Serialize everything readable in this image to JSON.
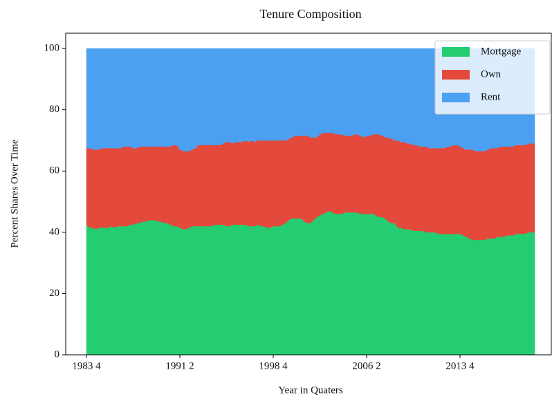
{
  "chart_data": {
    "type": "stacked-area",
    "title": "Tenure Composition",
    "xlabel": "Year in Quaters",
    "ylabel": "Percent Shares Over Time",
    "categories": [
      "1983 4",
      null,
      null,
      null,
      null,
      null,
      null,
      null,
      null,
      null,
      null,
      null,
      null,
      null,
      null,
      null,
      null,
      null,
      null,
      null,
      null,
      null,
      null,
      null,
      null,
      null,
      null,
      null,
      null,
      null,
      "1991 2",
      null,
      null,
      null,
      null,
      null,
      null,
      null,
      null,
      null,
      null,
      null,
      null,
      null,
      null,
      null,
      null,
      null,
      null,
      null,
      null,
      null,
      null,
      null,
      null,
      null,
      null,
      null,
      null,
      null,
      "1998 4",
      null,
      null,
      null,
      null,
      null,
      null,
      null,
      null,
      null,
      null,
      null,
      null,
      null,
      null,
      null,
      null,
      null,
      null,
      null,
      null,
      null,
      null,
      null,
      null,
      null,
      null,
      null,
      null,
      null,
      "2006 2",
      null,
      null,
      null,
      null,
      null,
      null,
      null,
      null,
      null,
      null,
      null,
      null,
      null,
      null,
      null,
      null,
      null,
      null,
      null,
      null,
      null,
      null,
      null,
      null,
      null,
      null,
      null,
      null,
      null,
      "2013 4",
      null,
      null,
      null,
      null,
      null,
      null,
      null,
      null,
      null,
      null,
      null,
      null,
      null,
      null,
      null,
      null,
      null,
      null,
      null,
      null,
      null,
      null,
      null,
      null
    ],
    "series": [
      {
        "name": "Mortgage",
        "color": "#25cd72",
        "values": [
          42.5,
          41.5,
          41.5,
          41,
          41.5,
          41.5,
          41.5,
          41.5,
          42,
          41.5,
          42,
          42,
          42,
          42,
          42.5,
          42.5,
          43,
          43,
          43.5,
          43.5,
          44,
          44,
          44,
          43.5,
          43.5,
          43,
          43,
          42.5,
          42,
          42,
          41.5,
          41,
          41,
          41.5,
          42,
          42,
          42,
          42,
          42,
          42,
          42,
          42.5,
          42.5,
          42.5,
          42.5,
          42,
          42,
          42.5,
          42.5,
          42.5,
          42.5,
          42.5,
          42,
          42,
          42,
          42.5,
          42,
          42,
          41.5,
          41.5,
          42,
          42,
          42,
          42.5,
          43,
          44,
          44.5,
          44.5,
          44.5,
          44.5,
          43.5,
          43,
          43,
          44,
          45,
          45.5,
          46,
          46.5,
          47,
          46.5,
          46,
          46,
          46,
          46.5,
          46.5,
          46.5,
          46.5,
          46.5,
          46,
          46,
          46,
          46,
          46,
          45.5,
          45,
          45,
          44.5,
          43.5,
          43,
          43,
          41.5,
          41.5,
          41,
          41,
          41,
          40.5,
          40.5,
          40.5,
          40.5,
          40,
          40,
          40,
          40,
          39.5,
          39.5,
          39.5,
          39.5,
          39.5,
          39.5,
          39.5,
          39.5,
          39,
          38.5,
          38,
          37.5,
          37.5,
          37.5,
          37.5,
          37.5,
          38,
          38,
          38,
          38.5,
          38.5,
          38.5,
          39,
          39,
          39,
          39.5,
          39.5,
          39.5,
          39.5,
          40,
          40,
          40
        ]
      },
      {
        "name": "Own",
        "color": "#e34a3b",
        "values": [
          25,
          26,
          25.5,
          26,
          25.5,
          26,
          26,
          26,
          25.5,
          26,
          25.5,
          25.5,
          26,
          26,
          25.5,
          25,
          24.5,
          25,
          24.5,
          24.5,
          24,
          24,
          24,
          24.5,
          24.5,
          25,
          25,
          25.5,
          26.5,
          26.5,
          25.5,
          25.5,
          25.5,
          25,
          25,
          25.5,
          26.5,
          26.5,
          26.5,
          26.5,
          26.5,
          26,
          26,
          26,
          26.5,
          27.5,
          27.5,
          26.5,
          27,
          27,
          27,
          27.5,
          27.5,
          28,
          27.5,
          27.5,
          28,
          28,
          28.5,
          28.5,
          28,
          28,
          28,
          27.5,
          27,
          26.5,
          26.5,
          27,
          27,
          27,
          28,
          28.5,
          28,
          27,
          26,
          26.5,
          26.5,
          26,
          25.5,
          26,
          26,
          26,
          26,
          25,
          25,
          25,
          25.5,
          25.5,
          25.5,
          25,
          25.5,
          25.5,
          26,
          26.5,
          27,
          26.5,
          26.5,
          27.5,
          27.5,
          27,
          28.5,
          28,
          28.5,
          28,
          28,
          28,
          28,
          27.5,
          27.5,
          28,
          27.5,
          27.5,
          27.5,
          28,
          28,
          28,
          28.5,
          28.5,
          29,
          29,
          28.5,
          28.5,
          28.5,
          29,
          29.5,
          29,
          29,
          29,
          29,
          29,
          29.5,
          29.5,
          29,
          29.5,
          29.5,
          29,
          29,
          29,
          29,
          29,
          29,
          29,
          29,
          29,
          29
        ]
      },
      {
        "name": "Rent",
        "color": "#4ca0f2",
        "values": [
          32.5,
          32.5,
          33,
          33,
          33,
          32.5,
          32.5,
          32.5,
          32.5,
          32.5,
          32.5,
          32.5,
          32,
          32,
          32,
          32.5,
          32.5,
          32,
          32,
          32,
          32,
          32,
          32,
          32,
          32,
          32,
          32,
          32,
          31.5,
          31.5,
          33,
          33.5,
          33.5,
          33.5,
          33,
          32.5,
          31.5,
          31.5,
          31.5,
          31.5,
          31.5,
          31.5,
          31.5,
          31.5,
          31,
          30.5,
          30.5,
          31,
          30.5,
          30.5,
          30.5,
          30,
          30.5,
          30,
          30.5,
          30,
          30,
          30,
          30,
          30,
          30,
          30,
          30,
          30,
          30,
          29.5,
          29,
          28.5,
          28.5,
          28.5,
          28.5,
          28.5,
          29,
          29,
          29,
          28,
          27.5,
          27.5,
          27.5,
          27.5,
          28,
          28,
          28,
          28.5,
          28.5,
          28.5,
          28,
          28,
          28.5,
          29,
          28.5,
          28.5,
          28,
          28,
          28,
          28.5,
          29,
          29,
          29.5,
          30,
          30,
          30.5,
          30.5,
          31,
          31,
          31.5,
          31.5,
          32,
          32,
          32,
          32.5,
          32.5,
          32.5,
          32.5,
          32.5,
          32.5,
          32,
          32,
          31.5,
          31.5,
          32,
          32.5,
          33,
          33,
          33,
          33.5,
          33.5,
          33.5,
          33.5,
          33,
          32.5,
          32.5,
          32.5,
          32,
          32,
          32,
          32,
          32,
          31.5,
          31.5,
          31.5,
          31.5,
          31,
          31,
          31
        ]
      }
    ],
    "ylim": [
      0,
      105
    ],
    "yticks": [
      0,
      20,
      40,
      60,
      80,
      100
    ],
    "grid": false,
    "legend": "upper right"
  }
}
